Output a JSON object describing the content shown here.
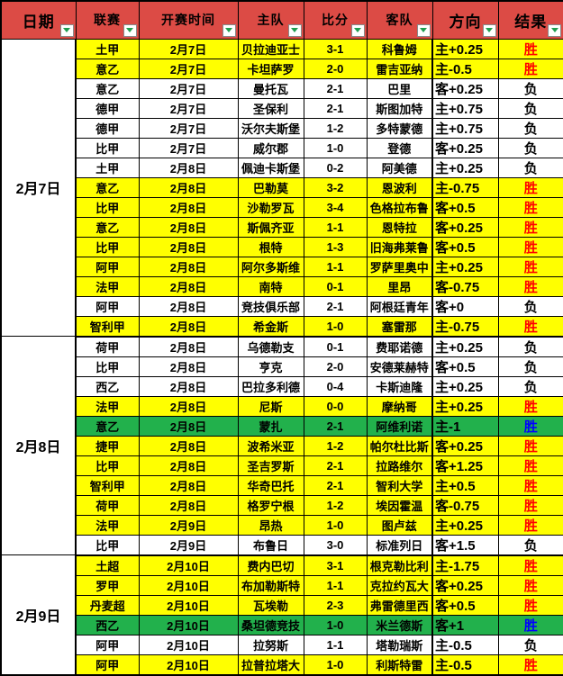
{
  "colors": {
    "header_bg": "#DC4B45",
    "row_yellow": "#FFFF00",
    "row_green": "#22B14C",
    "win_red": "#FF0000",
    "win_blue": "#0000FF",
    "filter_arrow_green": "#1E9E50"
  },
  "table": {
    "columns": [
      {
        "key": "date",
        "label": "日期",
        "big": true
      },
      {
        "key": "league",
        "label": "联赛",
        "big": false
      },
      {
        "key": "kickoff",
        "label": "开赛时间",
        "big": false
      },
      {
        "key": "home",
        "label": "主队",
        "big": false
      },
      {
        "key": "score",
        "label": "比分",
        "big": false
      },
      {
        "key": "away",
        "label": "客队",
        "big": false
      },
      {
        "key": "direction",
        "label": "方向",
        "big": true
      },
      {
        "key": "result",
        "label": "结果",
        "big": true
      }
    ],
    "groups": [
      {
        "date": "2月7日",
        "rows": [
          {
            "league": "土甲",
            "time": "2月7日",
            "home": "贝拉迪亚士",
            "score": "3-1",
            "away": "科鲁姆",
            "direction": "主+0.25",
            "result": "胜",
            "bg": "yellow",
            "result_color": "red"
          },
          {
            "league": "意乙",
            "time": "2月7日",
            "home": "卡坦萨罗",
            "score": "2-0",
            "away": "雷吉亚纳",
            "direction": "主-0.5",
            "result": "胜",
            "bg": "yellow",
            "result_color": "red"
          },
          {
            "league": "意乙",
            "time": "2月7日",
            "home": "曼托瓦",
            "score": "2-1",
            "away": "巴里",
            "direction": "客+0.25",
            "result": "负",
            "bg": "white",
            "result_color": "black"
          },
          {
            "league": "德甲",
            "time": "2月7日",
            "home": "圣保利",
            "score": "2-1",
            "away": "斯图加特",
            "direction": "主+0.75",
            "result": "负",
            "bg": "white",
            "result_color": "black"
          },
          {
            "league": "德甲",
            "time": "2月7日",
            "home": "沃尔夫斯堡",
            "score": "1-2",
            "away": "多特蒙德",
            "direction": "主+0.75",
            "result": "负",
            "bg": "white",
            "result_color": "black"
          },
          {
            "league": "比甲",
            "time": "2月7日",
            "home": "威尔郡",
            "score": "1-0",
            "away": "登德",
            "direction": "客+0.25",
            "result": "负",
            "bg": "white",
            "result_color": "black"
          },
          {
            "league": "土甲",
            "time": "2月8日",
            "home": "佩迪卡斯堡",
            "score": "0-2",
            "away": "阿美德",
            "direction": "主+0.25",
            "result": "负",
            "bg": "white",
            "result_color": "black"
          },
          {
            "league": "意乙",
            "time": "2月8日",
            "home": "巴勒莫",
            "score": "3-2",
            "away": "恩波利",
            "direction": "主-0.75",
            "result": "胜",
            "bg": "yellow",
            "result_color": "red"
          },
          {
            "league": "比甲",
            "time": "2月8日",
            "home": "沙勒罗瓦",
            "score": "3-4",
            "away": "色格拉布鲁",
            "direction": "客+0.5",
            "result": "胜",
            "bg": "yellow",
            "result_color": "red"
          },
          {
            "league": "意乙",
            "time": "2月8日",
            "home": "斯佩齐亚",
            "score": "1-1",
            "away": "恩特拉",
            "direction": "客+0.25",
            "result": "胜",
            "bg": "yellow",
            "result_color": "red"
          },
          {
            "league": "比甲",
            "time": "2月8日",
            "home": "根特",
            "score": "1-3",
            "away": "旧海弗莱鲁",
            "direction": "客+0.5",
            "result": "胜",
            "bg": "yellow",
            "result_color": "red"
          },
          {
            "league": "阿甲",
            "time": "2月8日",
            "home": "阿尔多斯维",
            "score": "1-1",
            "away": "罗萨里奥中",
            "direction": "主+0.25",
            "result": "胜",
            "bg": "yellow",
            "result_color": "red"
          },
          {
            "league": "法甲",
            "time": "2月8日",
            "home": "南特",
            "score": "0-1",
            "away": "里昂",
            "direction": "客-0.75",
            "result": "胜",
            "bg": "yellow",
            "result_color": "red"
          },
          {
            "league": "阿甲",
            "time": "2月8日",
            "home": "竞技俱乐部",
            "score": "2-1",
            "away": "阿根廷青年",
            "direction": "客+0",
            "result": "负",
            "bg": "white",
            "result_color": "black"
          },
          {
            "league": "智利甲",
            "time": "2月8日",
            "home": "希金斯",
            "score": "1-0",
            "away": "塞雷那",
            "direction": "主-0.75",
            "result": "胜",
            "bg": "yellow",
            "result_color": "red"
          }
        ]
      },
      {
        "date": "2月8日",
        "rows": [
          {
            "league": "荷甲",
            "time": "2月8日",
            "home": "乌德勒支",
            "score": "0-1",
            "away": "费耶诺德",
            "direction": "主+0.25",
            "result": "负",
            "bg": "white",
            "result_color": "black"
          },
          {
            "league": "比甲",
            "time": "2月8日",
            "home": "亨克",
            "score": "2-0",
            "away": "安德莱赫特",
            "direction": "客+0.5",
            "result": "负",
            "bg": "white",
            "result_color": "black"
          },
          {
            "league": "西乙",
            "time": "2月8日",
            "home": "巴拉多利德",
            "score": "0-4",
            "away": "卡斯迪隆",
            "direction": "主+0.25",
            "result": "负",
            "bg": "white",
            "result_color": "black"
          },
          {
            "league": "法甲",
            "time": "2月8日",
            "home": "尼斯",
            "score": "0-0",
            "away": "摩纳哥",
            "direction": "主+0.25",
            "result": "胜",
            "bg": "yellow",
            "result_color": "red"
          },
          {
            "league": "意乙",
            "time": "2月8日",
            "home": "蒙扎",
            "score": "2-1",
            "away": "阿维利诺",
            "direction": "主-1",
            "result": "胜",
            "bg": "green",
            "result_color": "blue"
          },
          {
            "league": "捷甲",
            "time": "2月8日",
            "home": "波希米亚",
            "score": "1-2",
            "away": "帕尔杜比斯",
            "direction": "客+0.25",
            "result": "胜",
            "bg": "yellow",
            "result_color": "red"
          },
          {
            "league": "比甲",
            "time": "2月8日",
            "home": "圣吉罗斯",
            "score": "2-1",
            "away": "拉路维尔",
            "direction": "客+1.25",
            "result": "胜",
            "bg": "yellow",
            "result_color": "red"
          },
          {
            "league": "智利甲",
            "time": "2月8日",
            "home": "华奇巴托",
            "score": "2-1",
            "away": "智利大学",
            "direction": "主+0.5",
            "result": "胜",
            "bg": "yellow",
            "result_color": "red"
          },
          {
            "league": "荷甲",
            "time": "2月8日",
            "home": "格罗宁根",
            "score": "1-2",
            "away": "埃因霍温",
            "direction": "客-0.75",
            "result": "胜",
            "bg": "yellow",
            "result_color": "red"
          },
          {
            "league": "法甲",
            "time": "2月9日",
            "home": "昂热",
            "score": "1-0",
            "away": "图卢兹",
            "direction": "主+0.25",
            "result": "胜",
            "bg": "yellow",
            "result_color": "red"
          },
          {
            "league": "比甲",
            "time": "2月9日",
            "home": "布鲁日",
            "score": "3-0",
            "away": "标准列日",
            "direction": "客+1.5",
            "result": "负",
            "bg": "white",
            "result_color": "black"
          }
        ]
      },
      {
        "date": "2月9日",
        "rows": [
          {
            "league": "土超",
            "time": "2月10日",
            "home": "费内巴切",
            "score": "3-1",
            "away": "根克勒比利",
            "direction": "主-1.75",
            "result": "胜",
            "bg": "yellow",
            "result_color": "red"
          },
          {
            "league": "罗甲",
            "time": "2月10日",
            "home": "布加勒斯特",
            "score": "1-1",
            "away": "克拉约瓦大",
            "direction": "客+0.25",
            "result": "胜",
            "bg": "yellow",
            "result_color": "red"
          },
          {
            "league": "丹麦超",
            "time": "2月10日",
            "home": "瓦埃勒",
            "score": "2-3",
            "away": "弗雷德里西",
            "direction": "客+0.5",
            "result": "胜",
            "bg": "yellow",
            "result_color": "red"
          },
          {
            "league": "西乙",
            "time": "2月10日",
            "home": "桑坦德竞技",
            "score": "1-0",
            "away": "米兰德斯",
            "direction": "客+1",
            "result": "胜",
            "bg": "green",
            "result_color": "blue"
          },
          {
            "league": "阿甲",
            "time": "2月10日",
            "home": "拉努斯",
            "score": "1-1",
            "away": "塔勒瑞斯",
            "direction": "主-0.5",
            "result": "负",
            "bg": "white",
            "result_color": "black"
          },
          {
            "league": "阿甲",
            "time": "2月10日",
            "home": "拉普拉塔大",
            "score": "1-0",
            "away": "利斯特雷",
            "direction": "主-0.5",
            "result": "胜",
            "bg": "yellow",
            "result_color": "red"
          }
        ]
      }
    ]
  }
}
